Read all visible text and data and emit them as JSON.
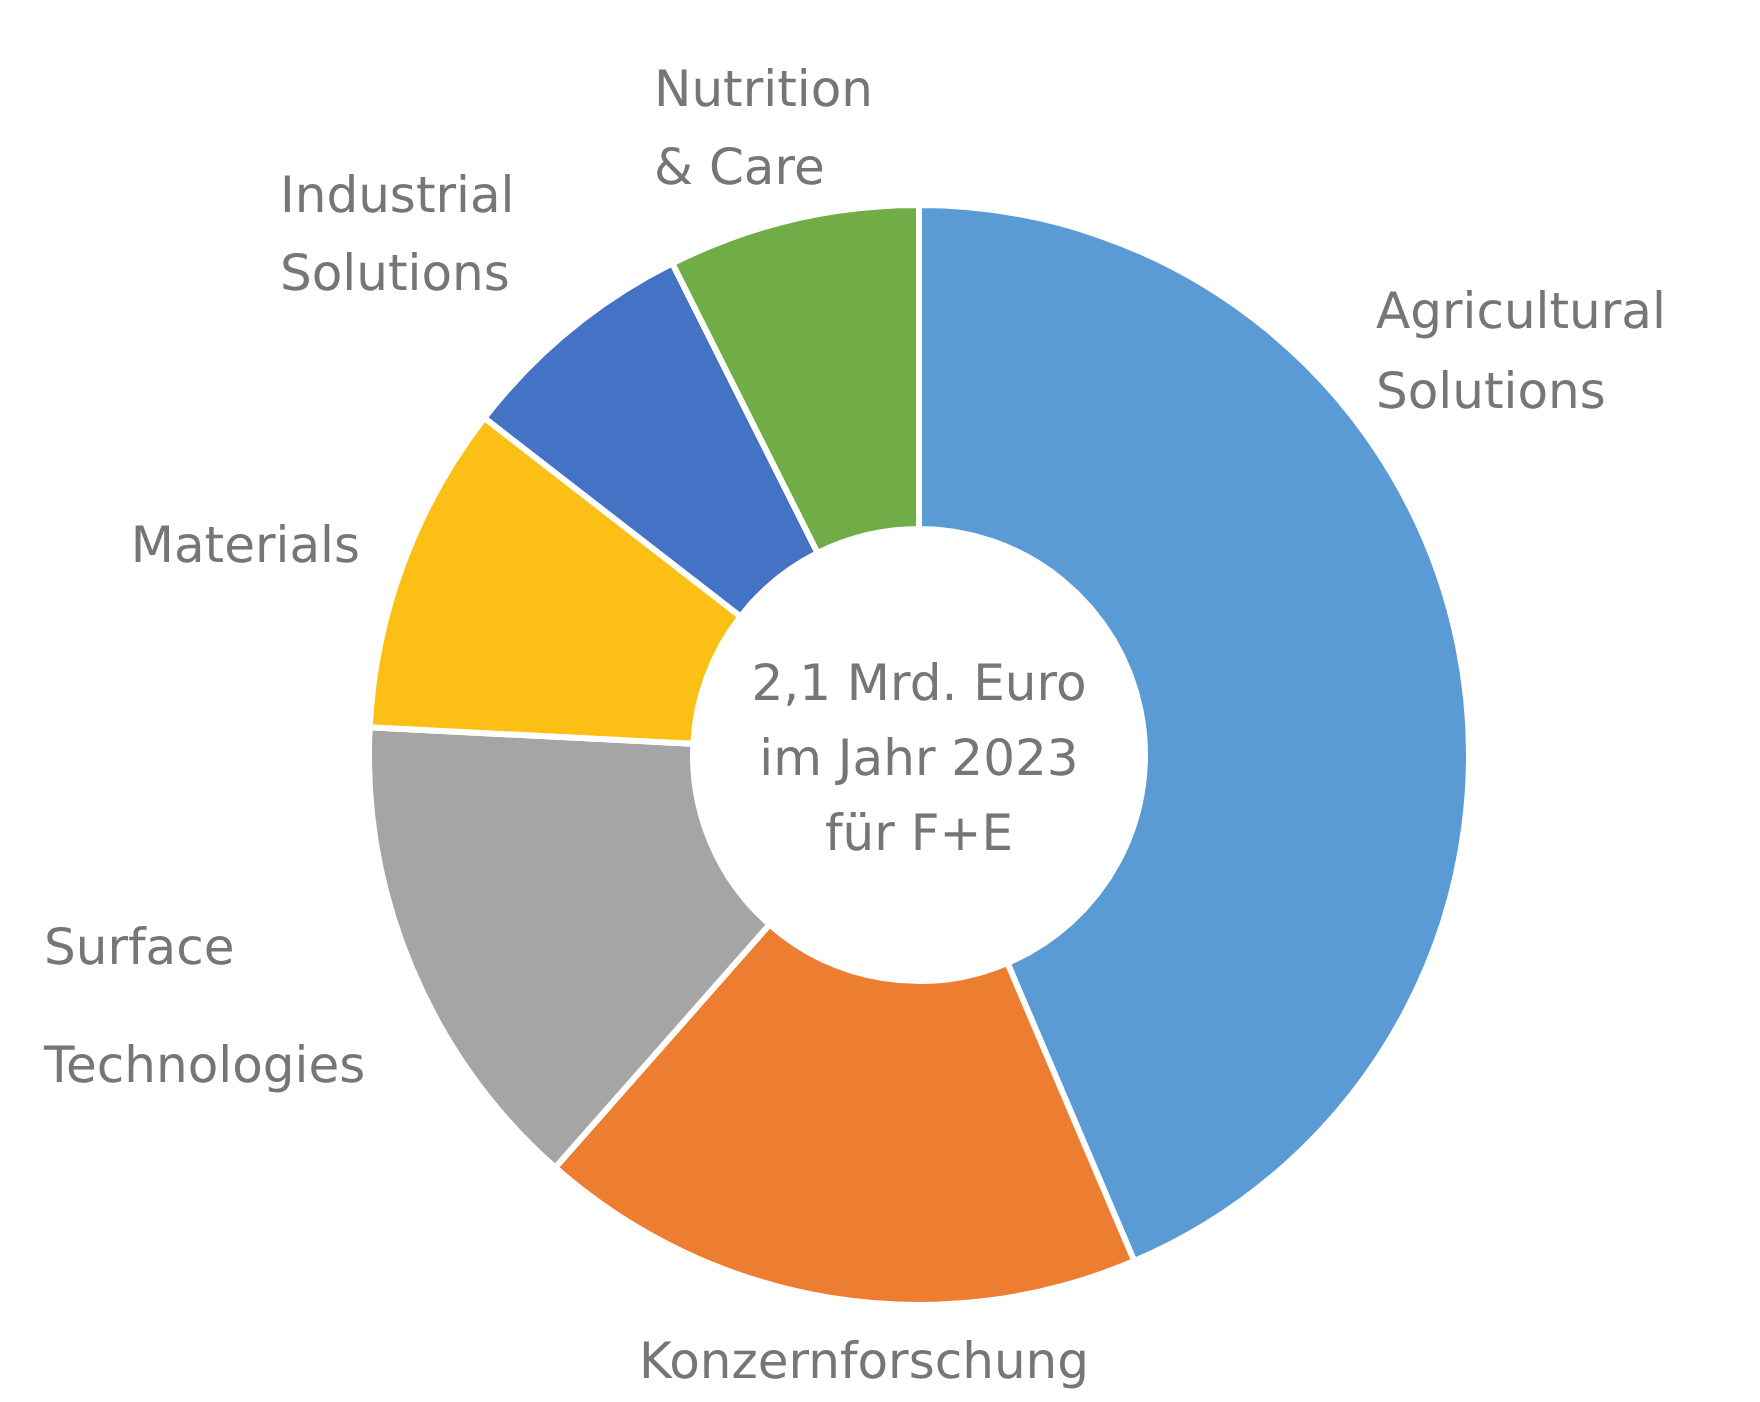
{
  "chart_data": {
    "type": "donut",
    "categories": [
      "Agricultural Solutions",
      "Konzernforschung",
      "Surface Technologies",
      "Materials",
      "Industrial Solutions",
      "Nutrition & Care"
    ],
    "values": [
      43.6,
      17.9,
      14.3,
      9.7,
      7.1,
      7.4
    ],
    "colors": [
      "#5b9bd5",
      "#ed7d31",
      "#a5a5a5",
      "#fbbf16",
      "#4472c4",
      "#70ad47"
    ],
    "annotations": [
      "2,1 Mrd. Euro\nim Jahr 2023\nfür F+E"
    ]
  }
}
